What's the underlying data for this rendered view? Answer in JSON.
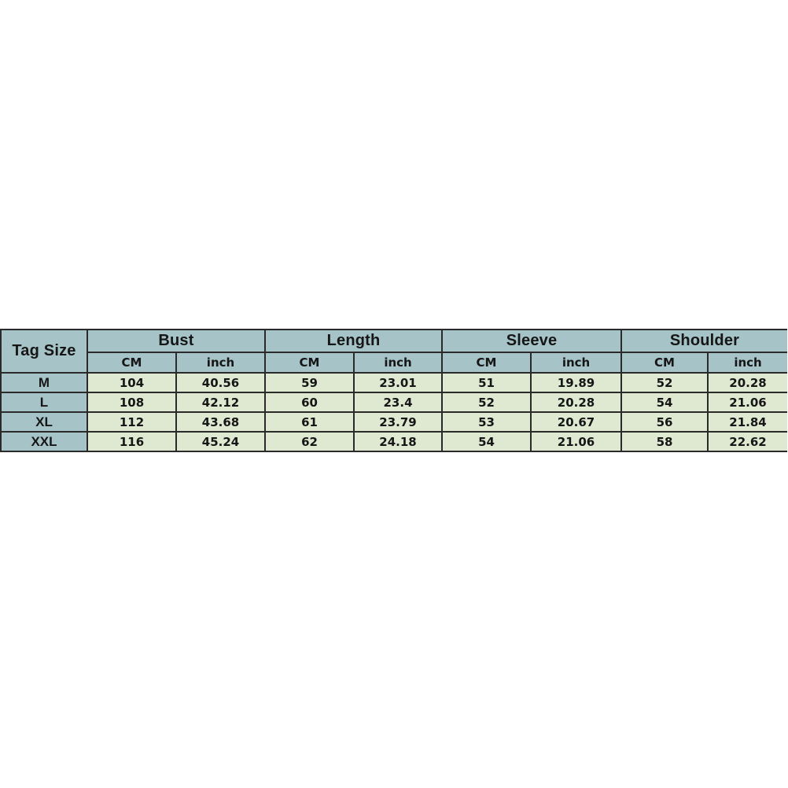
{
  "size_chart": {
    "corner_header": "Tag Size",
    "groups": [
      {
        "label": "Bust"
      },
      {
        "label": "Length"
      },
      {
        "label": "Sleeve"
      },
      {
        "label": "Shoulder"
      }
    ],
    "unit_headers": [
      "CM",
      "inch"
    ],
    "rows": [
      {
        "tag": "M",
        "values": [
          "104",
          "40.56",
          "59",
          "23.01",
          "51",
          "19.89",
          "52",
          "20.28"
        ]
      },
      {
        "tag": "L",
        "values": [
          "108",
          "42.12",
          "60",
          "23.4",
          "52",
          "20.28",
          "54",
          "21.06"
        ]
      },
      {
        "tag": "XL",
        "values": [
          "112",
          "43.68",
          "61",
          "23.79",
          "53",
          "20.67",
          "56",
          "21.84"
        ]
      },
      {
        "tag": "XXL",
        "values": [
          "116",
          "45.24",
          "62",
          "24.18",
          "54",
          "21.06",
          "58",
          "22.62"
        ]
      }
    ],
    "colors": {
      "header_bg": "#a6c3c8",
      "cell_bg": "#dfe9d2",
      "border": "#2a2a2a",
      "text": "#161616",
      "page_bg": "#ffffff"
    }
  },
  "chart_data": {
    "type": "table",
    "title": "Garment size chart",
    "columns": [
      "Tag Size",
      "Bust CM",
      "Bust inch",
      "Length CM",
      "Length inch",
      "Sleeve CM",
      "Sleeve inch",
      "Shoulder CM",
      "Shoulder inch"
    ],
    "rows": [
      [
        "M",
        104,
        40.56,
        59,
        23.01,
        51,
        19.89,
        52,
        20.28
      ],
      [
        "L",
        108,
        42.12,
        60,
        23.4,
        52,
        20.28,
        54,
        21.06
      ],
      [
        "XL",
        112,
        43.68,
        61,
        23.79,
        53,
        20.67,
        56,
        21.84
      ],
      [
        "XXL",
        116,
        45.24,
        62,
        24.18,
        54,
        21.06,
        58,
        22.62
      ]
    ]
  }
}
